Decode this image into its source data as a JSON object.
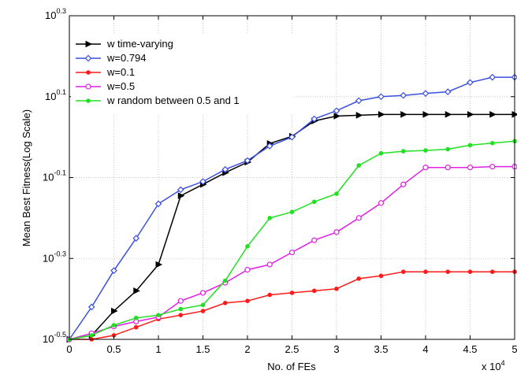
{
  "chart_data": {
    "type": "line",
    "title": "",
    "xlabel": "No. of FEs",
    "ylabel": "Mean Best Fitness(Log Scale)",
    "x_multiplier": "x 10",
    "x_multiplier_exp": "4",
    "y_scale": "log",
    "xlim": [
      0,
      5
    ],
    "ylim_exp": [
      -0.5,
      0.3
    ],
    "x_ticks": [
      "0",
      "0.5",
      "1",
      "1.5",
      "2",
      "2.5",
      "3",
      "3.5",
      "4",
      "4.5",
      "5"
    ],
    "y_ticks": [
      {
        "base": "10",
        "exp": "-0.5"
      },
      {
        "base": "10",
        "exp": "-0.3"
      },
      {
        "base": "10",
        "exp": "-0.1"
      },
      {
        "base": "10",
        "exp": "0.1"
      },
      {
        "base": "10",
        "exp": "0.3"
      }
    ],
    "grid": true,
    "legend_position": "top-left",
    "x": [
      0,
      0.25,
      0.5,
      0.75,
      1.0,
      1.25,
      1.5,
      1.75,
      2.0,
      2.25,
      2.5,
      2.75,
      3.0,
      3.25,
      3.5,
      3.75,
      4.0,
      4.25,
      4.5,
      4.75,
      5.0
    ],
    "series": [
      {
        "name": "w time-varying",
        "color": "#000000",
        "marker": "triangle-right",
        "log10_values": [
          -0.5,
          -0.49,
          -0.43,
          -0.38,
          -0.315,
          -0.145,
          -0.117,
          -0.088,
          -0.062,
          -0.016,
          0.002,
          0.04,
          0.052,
          0.054,
          0.056,
          0.056,
          0.056,
          0.056,
          0.056,
          0.056,
          0.056
        ]
      },
      {
        "name": "w=0.794",
        "color": "#3a4fe0",
        "marker": "diamond",
        "log10_values": [
          -0.5,
          -0.42,
          -0.33,
          -0.25,
          -0.165,
          -0.13,
          -0.11,
          -0.08,
          -0.058,
          -0.022,
          0.0,
          0.045,
          0.065,
          0.09,
          0.1,
          0.103,
          0.108,
          0.112,
          0.135,
          0.148,
          0.148
        ]
      },
      {
        "name": "w=0.1",
        "color": "#ff1a1a",
        "marker": "dot",
        "log10_values": [
          -0.5,
          -0.5,
          -0.49,
          -0.47,
          -0.45,
          -0.44,
          -0.43,
          -0.41,
          -0.405,
          -0.39,
          -0.385,
          -0.38,
          -0.375,
          -0.35,
          -0.343,
          -0.333,
          -0.333,
          -0.333,
          -0.333,
          -0.333,
          -0.333
        ]
      },
      {
        "name": "w=0.5",
        "color": "#e020e0",
        "marker": "circle-open",
        "log10_values": [
          -0.5,
          -0.485,
          -0.468,
          -0.456,
          -0.445,
          -0.405,
          -0.385,
          -0.36,
          -0.328,
          -0.315,
          -0.285,
          -0.255,
          -0.235,
          -0.2,
          -0.163,
          -0.117,
          -0.075,
          -0.075,
          -0.075,
          -0.073,
          -0.073
        ]
      },
      {
        "name": "w random between 0.5 and 1",
        "color": "#21e021",
        "marker": "dot",
        "log10_values": [
          -0.5,
          -0.49,
          -0.465,
          -0.447,
          -0.44,
          -0.425,
          -0.415,
          -0.355,
          -0.27,
          -0.2,
          -0.185,
          -0.16,
          -0.14,
          -0.07,
          -0.04,
          -0.035,
          -0.033,
          -0.03,
          -0.02,
          -0.015,
          -0.01
        ]
      }
    ]
  }
}
